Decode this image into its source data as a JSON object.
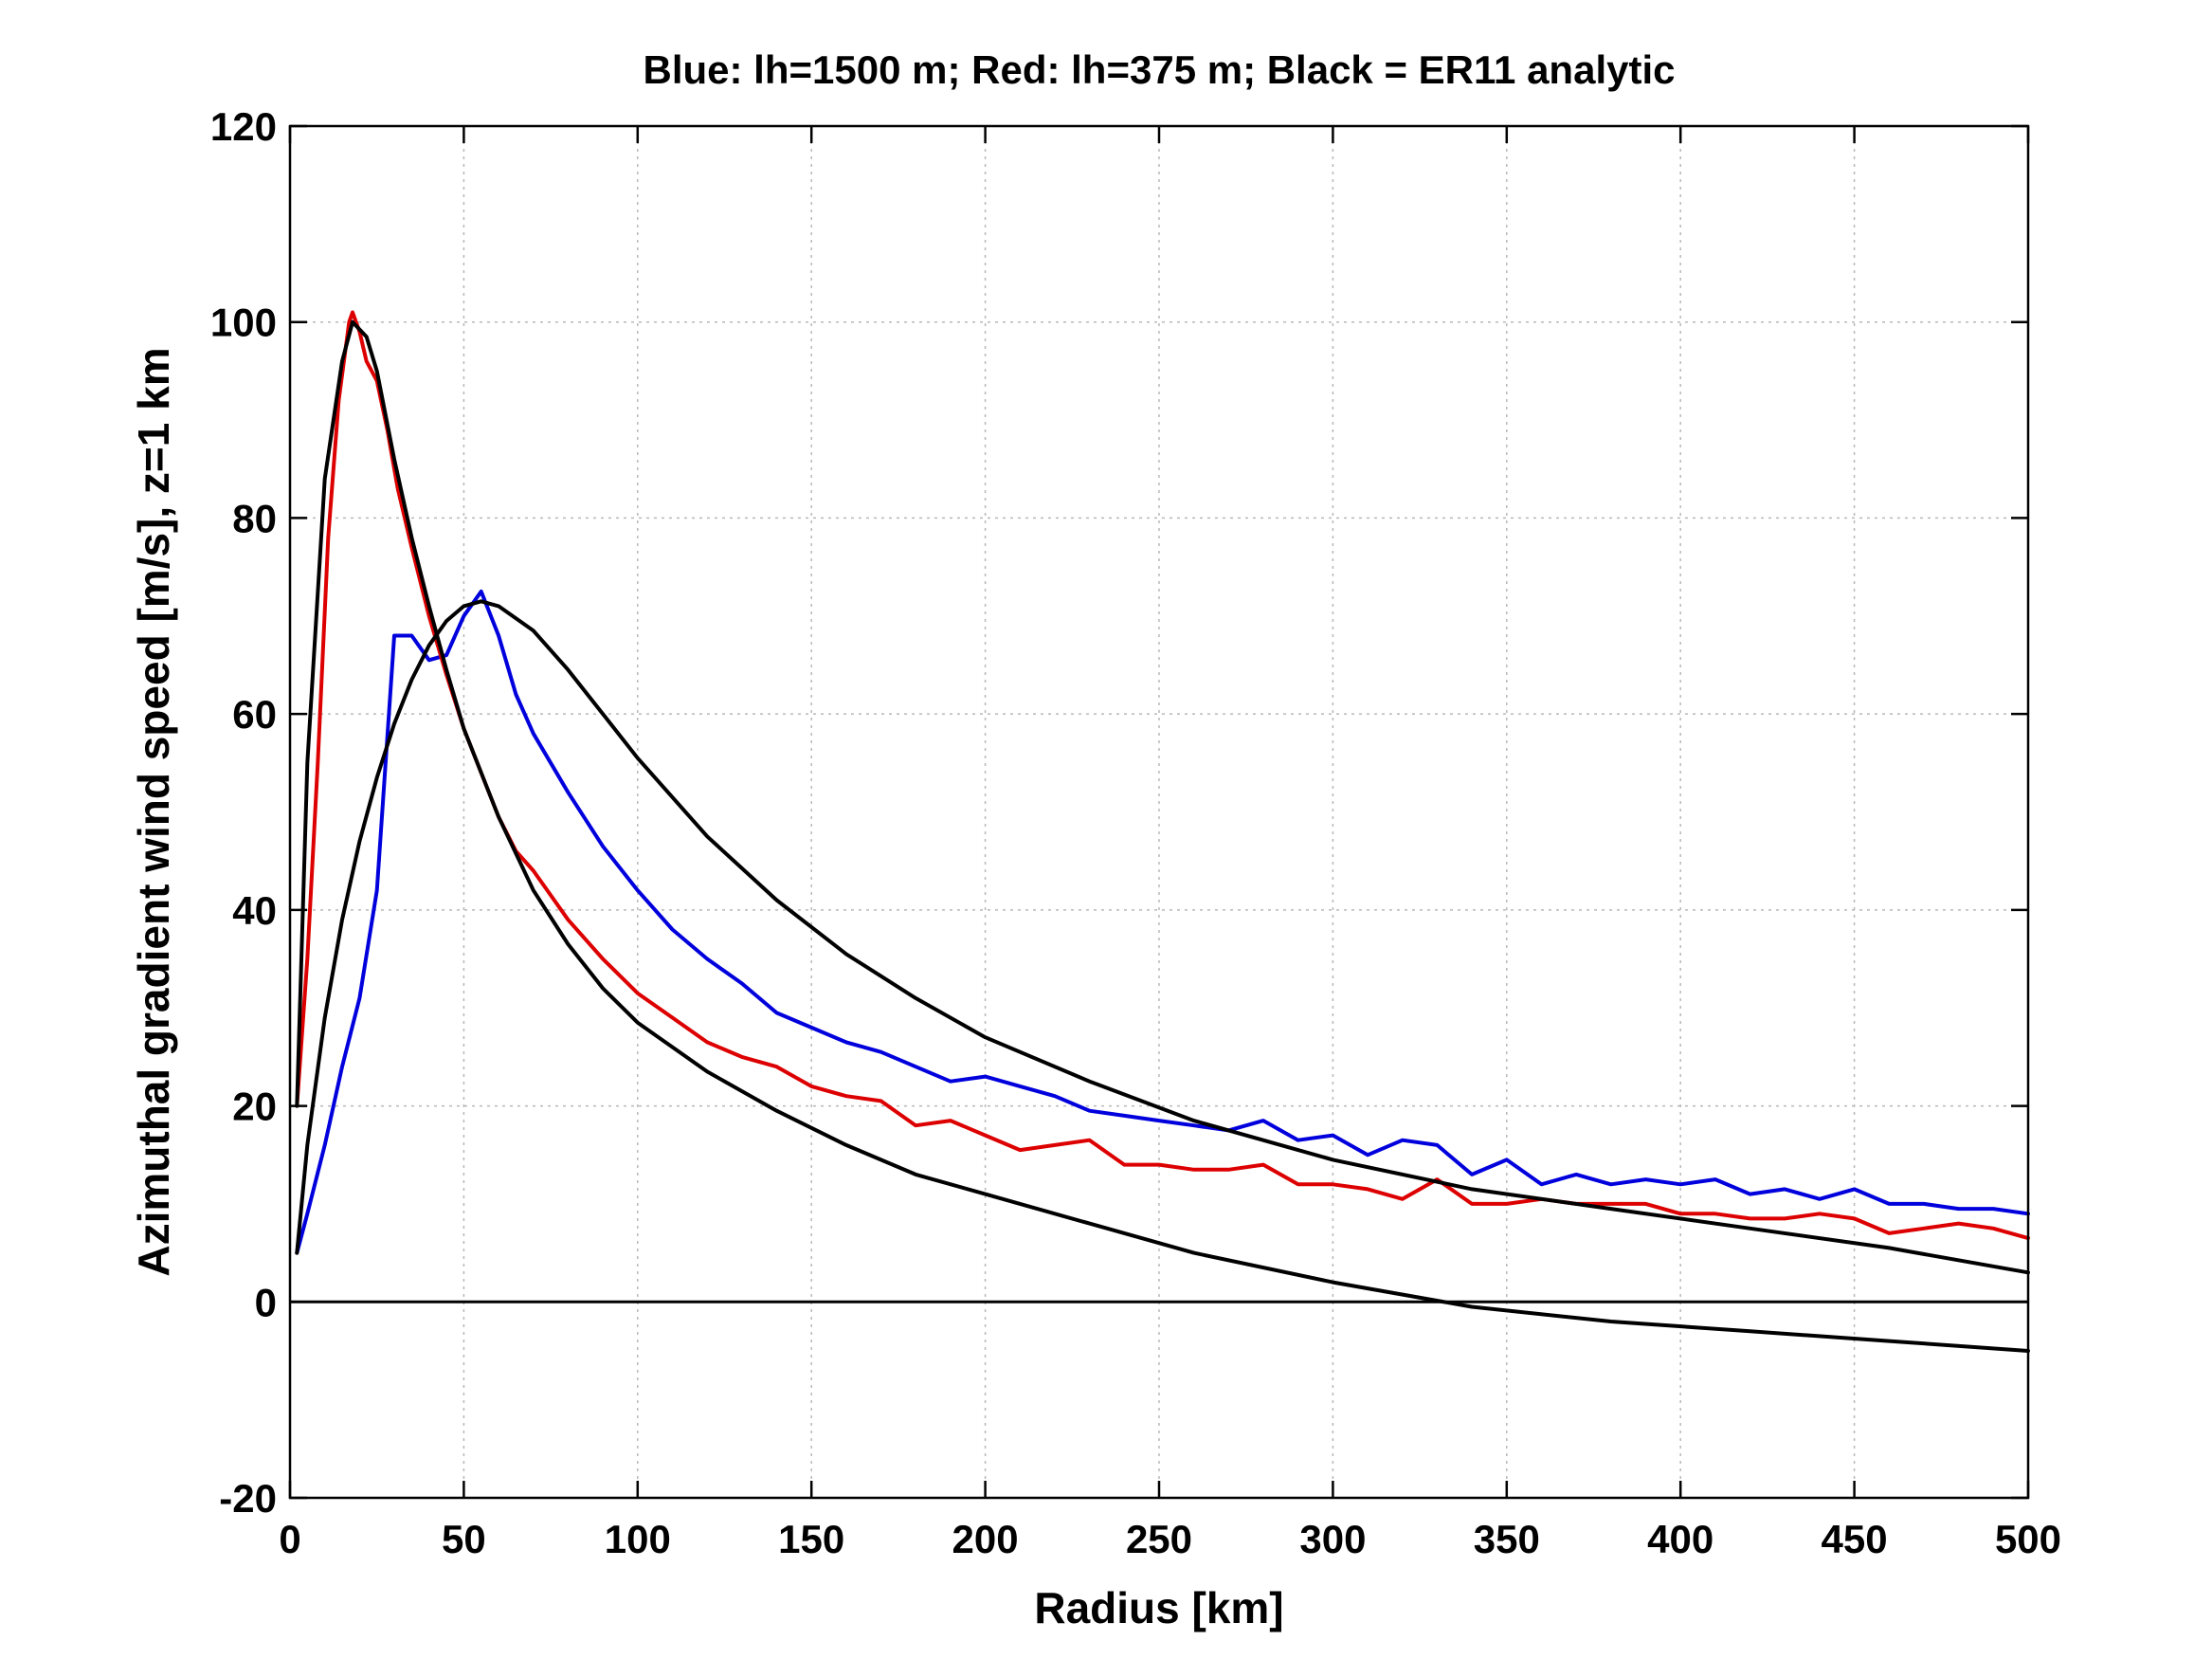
{
  "chart_data": {
    "type": "line",
    "title": "Blue: lh=1500 m; Red: lh=375 m; Black = ER11 analytic",
    "xlabel": "Radius [km]",
    "ylabel": "Azimuthal gradient wind speed [m/s], z=1 km",
    "xlim": [
      0,
      500
    ],
    "ylim": [
      -20,
      120
    ],
    "xticks": [
      0,
      50,
      100,
      150,
      200,
      250,
      300,
      350,
      400,
      450,
      500
    ],
    "yticks": [
      -20,
      0,
      20,
      40,
      60,
      80,
      100,
      120
    ],
    "grid": true,
    "legend": "none",
    "reference_line_y": 0,
    "series": [
      {
        "color": "#0000dd",
        "x": [
          2,
          5,
          10,
          15,
          20,
          25,
          30,
          35,
          40,
          45,
          50,
          55,
          60,
          65,
          70,
          80,
          90,
          100,
          110,
          120,
          130,
          140,
          150,
          160,
          170,
          180,
          190,
          200,
          210,
          220,
          230,
          240,
          250,
          260,
          270,
          280,
          290,
          300,
          310,
          320,
          330,
          340,
          350,
          360,
          370,
          380,
          390,
          400,
          410,
          420,
          430,
          440,
          450,
          460,
          470,
          480,
          490,
          500
        ],
        "y": [
          5,
          9,
          16,
          24,
          31,
          42,
          68,
          68,
          65.5,
          66,
          70,
          72.5,
          68,
          62,
          58,
          52,
          46.5,
          42,
          38,
          35,
          32.5,
          29.5,
          28,
          26.5,
          25.5,
          24,
          22.5,
          23,
          22,
          21,
          19.5,
          19,
          18.5,
          18,
          17.5,
          18.5,
          16.5,
          17,
          15,
          16.5,
          16,
          13,
          14.5,
          12,
          13,
          12,
          12.5,
          12,
          12.5,
          11,
          11.5,
          10.5,
          11.5,
          10,
          10,
          9.5,
          9.5,
          9
        ]
      },
      {
        "color": "#dd0000",
        "x": [
          2,
          5,
          8,
          11,
          14,
          17,
          18,
          20,
          22,
          25,
          28,
          31,
          35,
          40,
          45,
          50,
          55,
          60,
          65,
          70,
          80,
          90,
          100,
          110,
          120,
          130,
          140,
          150,
          160,
          170,
          180,
          190,
          200,
          210,
          220,
          230,
          240,
          250,
          260,
          270,
          280,
          290,
          300,
          310,
          320,
          330,
          340,
          350,
          360,
          370,
          380,
          390,
          400,
          410,
          420,
          430,
          440,
          450,
          460,
          470,
          480,
          490,
          500
        ],
        "y": [
          20,
          35,
          55,
          78,
          92,
          100,
          101,
          99,
          96,
          94,
          89,
          83,
          77,
          70,
          64,
          58.5,
          54,
          49.5,
          46,
          44,
          39,
          35,
          31.5,
          29,
          26.5,
          25,
          24,
          22,
          21,
          20.5,
          18,
          18.5,
          17,
          15.5,
          16,
          16.5,
          14,
          14,
          13.5,
          13.5,
          14,
          12,
          12,
          11.5,
          10.5,
          12.5,
          10,
          10,
          10.5,
          10,
          10,
          10,
          9,
          9,
          8.5,
          8.5,
          9,
          8.5,
          7,
          7.5,
          8,
          7.5,
          6.5
        ]
      },
      {
        "color": "#000000",
        "x": [
          2,
          5,
          10,
          15,
          18,
          22,
          25,
          30,
          35,
          40,
          45,
          50,
          60,
          70,
          80,
          90,
          100,
          120,
          140,
          160,
          180,
          200,
          230,
          260,
          300,
          340,
          380,
          420,
          460,
          500
        ],
        "y": [
          20,
          55,
          84,
          96,
          100,
          98.5,
          95,
          86,
          78,
          71,
          64.5,
          58.5,
          49.5,
          42,
          36.5,
          32,
          28.5,
          23.5,
          19.5,
          16,
          13,
          11,
          8,
          5,
          2,
          -0.5,
          -2,
          -3,
          -4,
          -5
        ]
      },
      {
        "color": "#000000",
        "x": [
          2,
          5,
          10,
          15,
          20,
          25,
          30,
          35,
          40,
          45,
          50,
          55,
          60,
          70,
          80,
          90,
          100,
          120,
          140,
          160,
          180,
          200,
          230,
          260,
          300,
          340,
          380,
          420,
          460,
          500
        ],
        "y": [
          5,
          16,
          29,
          39,
          47,
          53.5,
          59,
          63.5,
          67,
          69.5,
          71,
          71.5,
          71,
          68.5,
          64.5,
          60,
          55.5,
          47.5,
          41,
          35.5,
          31,
          27,
          22.5,
          18.5,
          14.5,
          11.5,
          9.5,
          7.5,
          5.5,
          3
        ]
      }
    ]
  }
}
